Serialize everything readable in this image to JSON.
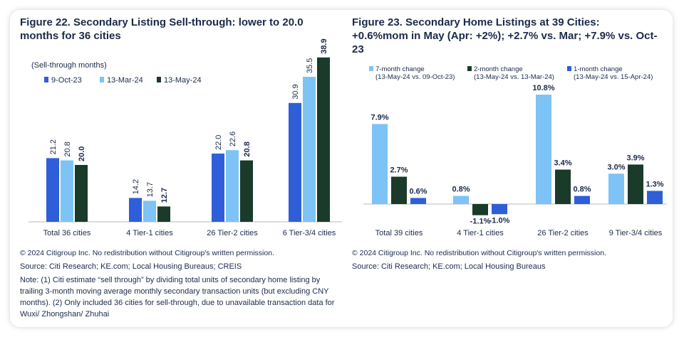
{
  "colors": {
    "bar_blue": "#2e5fd8",
    "bar_light": "#7dc3f5",
    "bar_dark": "#1a3a2a",
    "text": "#1b2a4a"
  },
  "left": {
    "title": "Figure 22. Secondary Listing Sell-through: lower to 20.0 months for 36 cities",
    "copyright": "© 2024 Citigroup Inc. No redistribution without Citigroup's written permission.",
    "source": "Source: Citi Research; KE.com; Local Housing Bureaus; CREIS",
    "note": "Note: (1) Citi estimate “sell through” by dividing total units of secondary home listing by trailing 3-month moving average monthly secondary transaction units (but excluding CNY months).  (2) Only included 36 cities for sell-through, due to unavailable transaction data for Wuxi/ Zhongshan/ Zhuhai"
  },
  "right": {
    "title": "Figure 23. Secondary Home Listings at 39 Cities: +0.6%mom in May (Apr: +2%); +2.7% vs. Mar; +7.9% vs. Oct-23",
    "copyright": "© 2024 Citigroup Inc. No redistribution without Citigroup's written permission.",
    "source": "Source: Citi Research; KE.com; Local Housing Bureaus"
  },
  "chart_data": [
    {
      "type": "bar",
      "ylabel": "(Sell-through months)",
      "categories": [
        "Total 36 cities",
        "4 Tier-1 cities",
        "26 Tier-2 cities",
        "6 Tier-3/4 cities"
      ],
      "series": [
        {
          "name": "9-Oct-23",
          "values": [
            21.2,
            14.2,
            22.0,
            30.9
          ]
        },
        {
          "name": "13-Mar-24",
          "values": [
            20.8,
            13.7,
            22.6,
            35.5
          ]
        },
        {
          "name": "13-May-24",
          "values": [
            20.0,
            12.7,
            20.8,
            38.9
          ]
        }
      ],
      "data_labels": [
        [
          "21.2",
          "14.2",
          "22.0",
          "30.9"
        ],
        [
          "20.8",
          "13.7",
          "22.6",
          "35.5"
        ],
        [
          "20.0",
          "12.7",
          "20.8",
          "38.9"
        ]
      ],
      "legend_position": "top-left",
      "ylim": [
        10,
        40
      ]
    },
    {
      "type": "bar",
      "categories": [
        "Total 39 cities",
        "4 Tier-1 cities",
        "26 Tier-2 cities",
        "9 Tier-3/4 cities"
      ],
      "series": [
        {
          "name": "7-month change",
          "sub": "(13-May-24 vs. 09-Oct-23)",
          "values": [
            7.9,
            0.8,
            10.8,
            3.0
          ]
        },
        {
          "name": "2-month change",
          "sub": "(13-May-24 vs. 13-Mar-24)",
          "values": [
            2.7,
            -1.1,
            3.4,
            3.9
          ]
        },
        {
          "name": "1-month change",
          "sub": "(13-May-24 vs. 15-Apr-24)",
          "values": [
            0.6,
            -1.0,
            0.8,
            1.3
          ]
        }
      ],
      "data_labels": [
        [
          "7.9%",
          "0.8%",
          "10.8%",
          "3.0%"
        ],
        [
          "2.7%",
          "-1.1%",
          "3.4%",
          "3.9%"
        ],
        [
          "0.6%",
          "-1.0%",
          "0.8%",
          "1.3%"
        ]
      ],
      "legend_position": "top",
      "ylim": [
        -1.5,
        11
      ]
    }
  ]
}
